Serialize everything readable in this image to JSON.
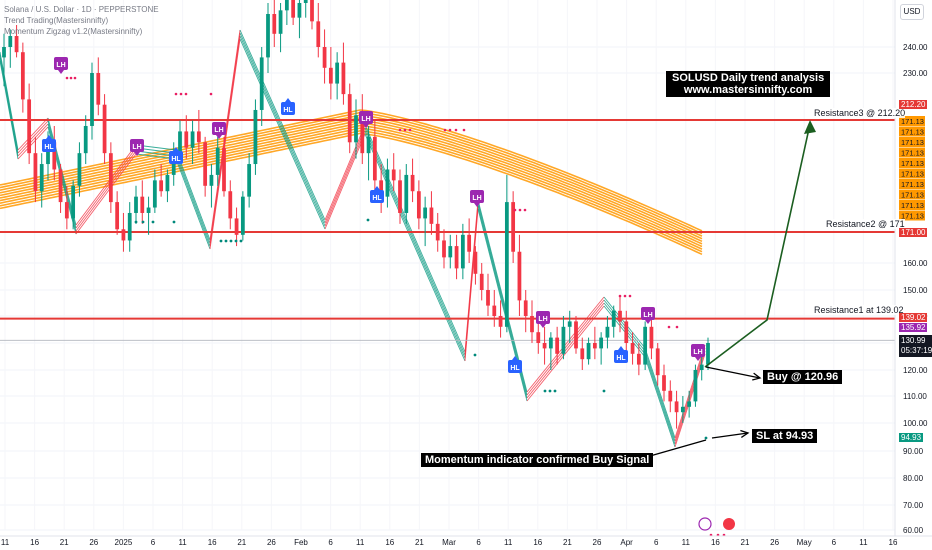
{
  "header": {
    "symbol_line": "Solana / U.S. Dollar · 1D · PEPPERSTONE",
    "indicator1": "Trend Trading(Mastersinnifty)",
    "indicator2": "Momentum Zigzag v1.2(Mastersinnifty)"
  },
  "currency_button": "USD",
  "annotations": {
    "title_line1": "SOLUSD Daily trend analysis",
    "title_line2": "www.mastersinnifty.com",
    "buy": "Buy @ 120.96",
    "sl": "SL at 94.93",
    "momentum": "Momentum indicator confirmed Buy Signal"
  },
  "levels": {
    "resistance3_label": "Resistance3 @ 212.20",
    "resistance2_label": "Resistance2 @ 171",
    "resistance1_label": "Resistance1 at 139.02"
  },
  "price_tags": {
    "r3": "212.20",
    "band": "171.13",
    "r2": "171.00",
    "r1": "139.02",
    "p2": "135.92",
    "last": "130.99",
    "countdown": "05:37:19",
    "sl": "94.93"
  },
  "colors": {
    "bull": "#089981",
    "bear": "#f23645",
    "resistance": "#e53935",
    "ribbon": "#ff9800",
    "lh_marker": "#9c27b0",
    "hl_marker": "#2962ff",
    "dots_pink": "#e91e63",
    "dots_teal": "#00897b",
    "projection": "#1b5e20"
  },
  "chart_data": {
    "type": "candlestick",
    "y_axis_ticks": [
      60,
      70,
      80,
      90,
      100,
      110,
      120,
      130,
      140,
      150,
      160,
      230,
      240
    ],
    "x_axis_ticks": [
      "11",
      "16",
      "21",
      "26",
      "2025",
      "6",
      "11",
      "16",
      "21",
      "26",
      "Feb",
      "6",
      "11",
      "16",
      "21",
      "Mar",
      "6",
      "11",
      "16",
      "21",
      "26",
      "Apr",
      "6",
      "11",
      "16",
      "21",
      "26",
      "May",
      "6",
      "11",
      "16"
    ],
    "resistance_levels": [
      212.2,
      171.0,
      139.02
    ],
    "buy_price": 120.96,
    "stop_loss": 94.93,
    "last_price": 130.99,
    "marker_labels": {
      "lh": "LH",
      "hl": "HL"
    },
    "candles": [
      [
        236,
        246,
        225,
        240
      ],
      [
        240,
        248,
        232,
        245
      ],
      [
        245,
        250,
        236,
        238
      ],
      [
        238,
        242,
        215,
        220
      ],
      [
        220,
        226,
        196,
        200
      ],
      [
        200,
        206,
        182,
        186
      ],
      [
        186,
        200,
        180,
        196
      ],
      [
        196,
        208,
        190,
        204
      ],
      [
        204,
        210,
        190,
        194
      ],
      [
        194,
        196,
        178,
        182
      ],
      [
        182,
        188,
        172,
        176
      ],
      [
        176,
        190,
        172,
        188
      ],
      [
        188,
        204,
        184,
        200
      ],
      [
        200,
        214,
        196,
        210
      ],
      [
        210,
        234,
        205,
        230
      ],
      [
        230,
        236,
        214,
        218
      ],
      [
        218,
        222,
        196,
        200
      ],
      [
        200,
        204,
        178,
        182
      ],
      [
        182,
        186,
        170,
        172
      ],
      [
        172,
        178,
        164,
        168
      ],
      [
        168,
        182,
        164,
        178
      ],
      [
        178,
        188,
        174,
        184
      ],
      [
        184,
        190,
        174,
        178
      ],
      [
        178,
        184,
        170,
        180
      ],
      [
        180,
        194,
        178,
        190
      ],
      [
        190,
        196,
        184,
        186
      ],
      [
        186,
        194,
        182,
        192
      ],
      [
        192,
        204,
        188,
        200
      ],
      [
        200,
        212,
        196,
        208
      ],
      [
        208,
        214,
        198,
        202
      ],
      [
        202,
        212,
        196,
        208
      ],
      [
        208,
        216,
        200,
        204
      ],
      [
        204,
        206,
        184,
        188
      ],
      [
        188,
        196,
        180,
        192
      ],
      [
        192,
        206,
        188,
        202
      ],
      [
        202,
        206,
        184,
        186
      ],
      [
        186,
        190,
        172,
        176
      ],
      [
        176,
        180,
        166,
        170
      ],
      [
        170,
        186,
        168,
        184
      ],
      [
        184,
        200,
        180,
        196
      ],
      [
        196,
        220,
        192,
        216
      ],
      [
        216,
        240,
        210,
        236
      ],
      [
        236,
        262,
        230,
        256
      ],
      [
        256,
        270,
        240,
        246
      ],
      [
        246,
        262,
        238,
        258
      ],
      [
        258,
        280,
        250,
        272
      ],
      [
        272,
        282,
        250,
        254
      ],
      [
        254,
        268,
        244,
        262
      ],
      [
        262,
        276,
        254,
        270
      ],
      [
        270,
        278,
        248,
        252
      ],
      [
        252,
        262,
        236,
        240
      ],
      [
        240,
        248,
        226,
        232
      ],
      [
        232,
        240,
        220,
        226
      ],
      [
        226,
        238,
        220,
        234
      ],
      [
        234,
        242,
        218,
        222
      ],
      [
        222,
        226,
        200,
        204
      ],
      [
        204,
        220,
        198,
        214
      ],
      [
        214,
        222,
        196,
        200
      ],
      [
        200,
        210,
        190,
        206
      ],
      [
        206,
        212,
        186,
        190
      ],
      [
        190,
        196,
        178,
        184
      ],
      [
        184,
        198,
        180,
        194
      ],
      [
        194,
        200,
        186,
        190
      ],
      [
        190,
        194,
        174,
        178
      ],
      [
        178,
        196,
        174,
        192
      ],
      [
        192,
        198,
        182,
        186
      ],
      [
        186,
        190,
        172,
        176
      ],
      [
        176,
        184,
        166,
        180
      ],
      [
        180,
        186,
        170,
        174
      ],
      [
        174,
        178,
        164,
        168
      ],
      [
        168,
        172,
        158,
        162
      ],
      [
        162,
        170,
        158,
        166
      ],
      [
        166,
        170,
        154,
        158
      ],
      [
        158,
        174,
        154,
        170
      ],
      [
        170,
        176,
        160,
        164
      ],
      [
        164,
        166,
        152,
        156
      ],
      [
        156,
        160,
        146,
        150
      ],
      [
        150,
        156,
        140,
        144
      ],
      [
        144,
        150,
        136,
        140
      ],
      [
        140,
        146,
        132,
        136
      ],
      [
        136,
        192,
        134,
        182
      ],
      [
        182,
        186,
        160,
        164
      ],
      [
        164,
        170,
        140,
        146
      ],
      [
        146,
        150,
        134,
        140
      ],
      [
        140,
        146,
        130,
        134
      ],
      [
        134,
        140,
        126,
        130
      ],
      [
        130,
        136,
        122,
        128
      ],
      [
        128,
        134,
        120,
        132
      ],
      [
        132,
        136,
        122,
        126
      ],
      [
        126,
        140,
        124,
        136
      ],
      [
        136,
        142,
        130,
        138
      ],
      [
        138,
        140,
        126,
        128
      ],
      [
        128,
        132,
        120,
        124
      ],
      [
        124,
        132,
        122,
        130
      ],
      [
        130,
        136,
        124,
        128
      ],
      [
        128,
        134,
        122,
        132
      ],
      [
        132,
        140,
        128,
        136
      ],
      [
        136,
        144,
        132,
        142
      ],
      [
        142,
        148,
        134,
        138
      ],
      [
        138,
        142,
        126,
        130
      ],
      [
        130,
        134,
        122,
        126
      ],
      [
        126,
        130,
        118,
        122
      ],
      [
        122,
        138,
        120,
        136
      ],
      [
        136,
        140,
        124,
        128
      ],
      [
        128,
        130,
        114,
        118
      ],
      [
        118,
        122,
        108,
        112
      ],
      [
        112,
        116,
        104,
        108
      ],
      [
        108,
        112,
        98,
        104
      ],
      [
        104,
        110,
        100,
        106
      ],
      [
        106,
        112,
        102,
        108
      ],
      [
        108,
        122,
        106,
        120
      ],
      [
        120,
        126,
        116,
        122
      ],
      [
        122,
        132,
        120,
        130
      ]
    ]
  }
}
